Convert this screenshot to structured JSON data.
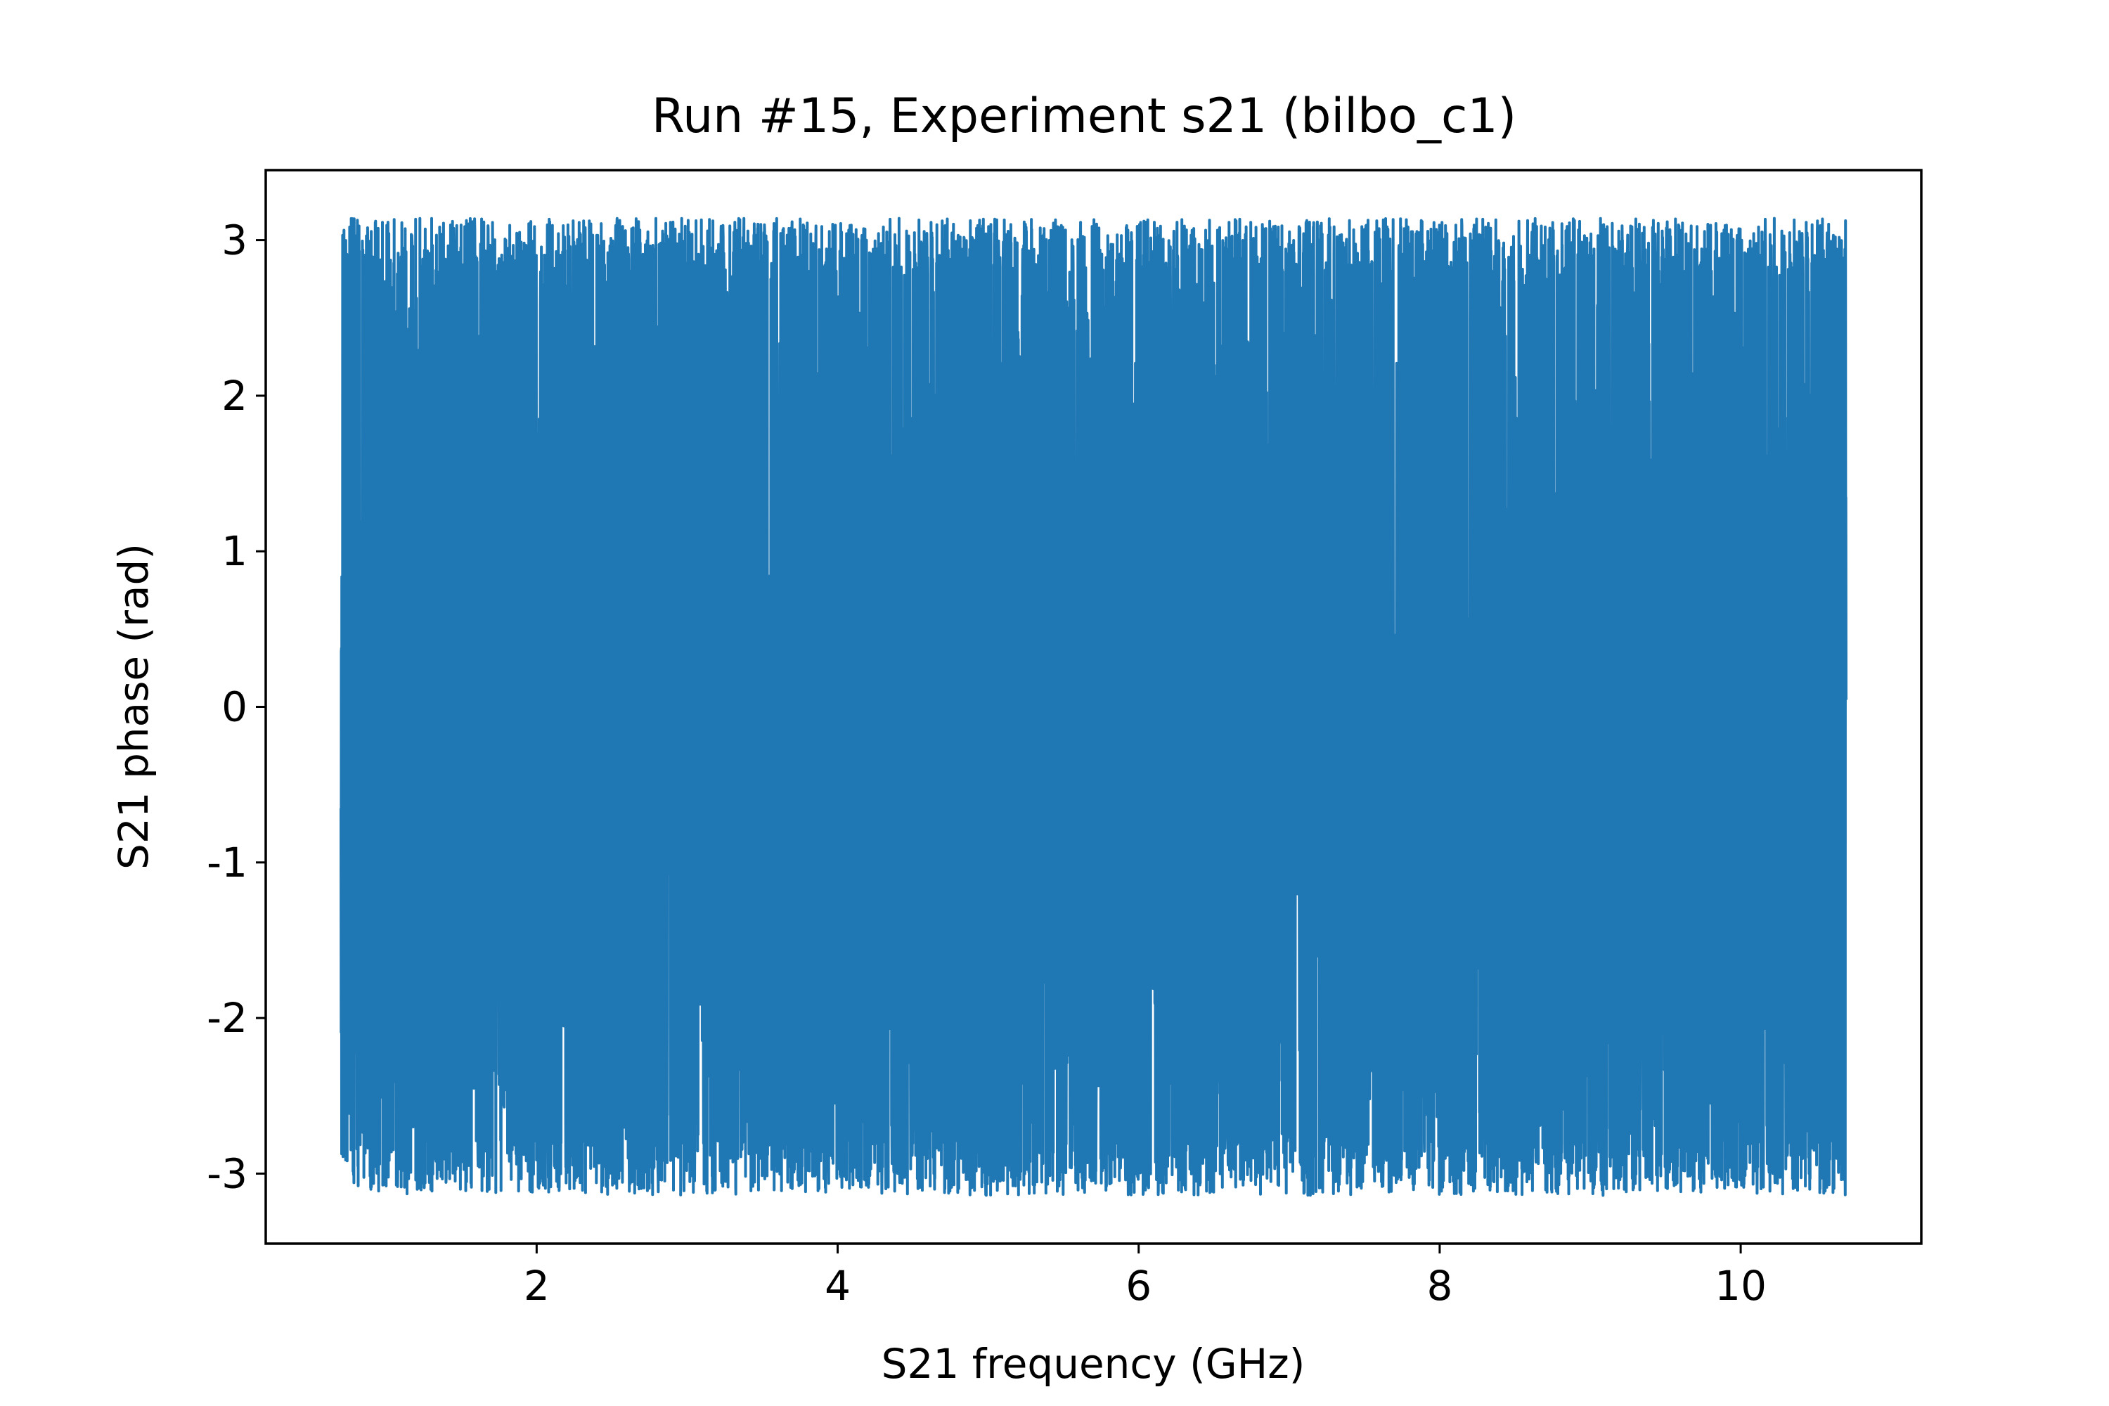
{
  "chart_data": {
    "type": "line",
    "title": "Run #15, Experiment s21 (bilbo_c1)",
    "xlabel": "S21 frequency (GHz)",
    "ylabel": "S21 phase (rad)",
    "xlim": [
      0.2,
      11.2
    ],
    "ylim": [
      -3.45,
      3.45
    ],
    "xticks": [
      2,
      4,
      6,
      8,
      10
    ],
    "xtick_labels": [
      "2",
      "4",
      "6",
      "8",
      "10"
    ],
    "yticks": [
      -3,
      -2,
      -1,
      0,
      1,
      2,
      3
    ],
    "ytick_labels": [
      "-3",
      "-2",
      "-1",
      "0",
      "1",
      "2",
      "3"
    ],
    "grid": false,
    "legend": "none",
    "series": [
      {
        "color": "#1f77b4",
        "x_start": 0.7,
        "x_end": 10.7,
        "y_min": -3.14,
        "y_max": 3.14,
        "pattern": "phase wrapping rapidly between -π and π over the whole frequency sweep"
      }
    ]
  }
}
